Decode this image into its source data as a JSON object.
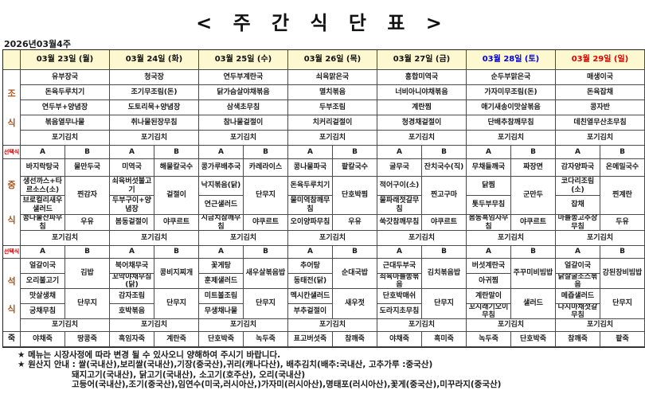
{
  "title": "< 주 간 식 단 표 >",
  "week_label": "2026년03월4주",
  "select_label": "선택식",
  "option_a": "A",
  "option_b": "B",
  "kimchi": "포기김치",
  "row_headers": {
    "breakfast": [
      "조",
      "식"
    ],
    "lunch": [
      "중",
      "식"
    ],
    "dinner": [
      "석",
      "식"
    ],
    "porridge": "죽"
  },
  "colors": {
    "weekday": "#111111",
    "saturday": "#0000d8",
    "sunday": "#d80000",
    "header_bg": "#fdf8cf",
    "meal_label": "#a8551e",
    "select_label": "#d00000"
  },
  "days": [
    {
      "date": "03월 23일 (월)",
      "color": "#111111",
      "breakfast": [
        "유부장국",
        "돈육두루치기",
        "연두부+양념장",
        "볶음열무나물",
        "포기김치"
      ],
      "lunch_a": [
        "바지락탕국",
        "생선까스+타르소스(소)",
        "브로컬리새우샐러드",
        "콩나물잔파무침"
      ],
      "lunch_b": [
        "물만두국",
        "찐감자",
        "우유"
      ],
      "dinner_a": [
        "얼갈이국",
        "오리불고기",
        "맛살생채",
        "궁채무침"
      ],
      "dinner_b": [
        "김밥",
        "단무지"
      ],
      "porridge": [
        "야채죽",
        "땅콩죽"
      ]
    },
    {
      "date": "03월 24일 (화)",
      "color": "#111111",
      "breakfast": [
        "청국장",
        "조기무조림(돈)",
        "도토리묵+양념장",
        "취나물된장무침",
        "포기김치"
      ],
      "lunch_a": [
        "미역국",
        "쇠육버섯불고기",
        "두부구이+양념장",
        "봄동겉절이"
      ],
      "lunch_b": [
        "해물칼국수",
        "겉절이",
        "야쿠르트"
      ],
      "dinner_a": [
        "북어채무국",
        "꼬막야채무침(닭)",
        "감자조림",
        "호박볶음"
      ],
      "dinner_b": [
        "콩비지찌개",
        "단무지"
      ],
      "porridge": [
        "흑임자죽",
        "계란죽"
      ]
    },
    {
      "date": "03월 25일 (수)",
      "color": "#111111",
      "breakfast": [
        "연두부계란국",
        "닭가슴살야채볶음",
        "삼색초무침",
        "참나물겉절이",
        "포기김치"
      ],
      "lunch_a": [
        "콩가루배추국",
        "낙지볶음(닭)",
        "연근샐러드",
        "시금치참깨무침"
      ],
      "lunch_b": [
        "카레라이스",
        "단무지",
        "야쿠르트"
      ],
      "dinner_a": [
        "꽃게탕",
        "훈제샐러드",
        "미트볼조림",
        "무생채나물"
      ],
      "dinner_b": [
        "새우살볶음밥",
        "단무지"
      ],
      "porridge": [
        "단호박죽",
        "녹두죽"
      ]
    },
    {
      "date": "03월 26일 (목)",
      "color": "#111111",
      "breakfast": [
        "쇠육맑은국",
        "멸치볶음",
        "두부조림",
        "치커리겉절이",
        "포기김치"
      ],
      "lunch_a": [
        "콩나물파국",
        "돈육두루치기",
        "물미역참깨무침",
        "오이양파무침"
      ],
      "lunch_b": [
        "팥칼국수",
        "단호박찜",
        "우유"
      ],
      "dinner_a": [
        "추어탕",
        "동태전(닭)",
        "멕시칸샐러드",
        "부추겉절이"
      ],
      "dinner_b": [
        "순대국밥",
        "새우젓"
      ],
      "porridge": [
        "표고버섯죽",
        "참깨죽"
      ]
    },
    {
      "date": "03월 27일 (금)",
      "color": "#111111",
      "breakfast": [
        "홍합미역국",
        "너비아니야채볶음",
        "계란찜",
        "청경채겉절이",
        "포기김치"
      ],
      "lunch_a": [
        "굴무국",
        "적어구이(소)",
        "물파래젓갈무침",
        "쑥갓참깨무침"
      ],
      "lunch_b": [
        "잔치국수(직)",
        "찐고구마",
        "야쿠르트"
      ],
      "dinner_a": [
        "근대두부국",
        "쇠육마늘쫑볶음",
        "단호박매쉬",
        "도라지초무침"
      ],
      "dinner_b": [
        "김치볶음밥",
        "단무지"
      ],
      "porridge": [
        "야채죽",
        "흑미죽"
      ]
    },
    {
      "date": "03월 28일 (토)",
      "color": "#0000d8",
      "breakfast": [
        "순두부맑은국",
        "가자미무조림(돈)",
        "애기새송이맛살볶음",
        "단배추참깨무침",
        "포기김치"
      ],
      "lunch_a": [
        "무채들깨국",
        "닭찜",
        "톳두부무침",
        "봄동흑임자무침"
      ],
      "lunch_b": [
        "짜장면",
        "군만두",
        "야쿠르트"
      ],
      "dinner_a": [
        "버섯계란국",
        "아귀찜",
        "계란말이",
        "꼬시래기오이무침"
      ],
      "dinner_b": [
        "주꾸미비빔밥",
        "샐러드"
      ],
      "porridge": [
        "녹두죽",
        "단호박죽"
      ]
    },
    {
      "date": "03월 29일 (일)",
      "color": "#d80000",
      "breakfast": [
        "매생이국",
        "돈육잡채",
        "콩자반",
        "데친열무산초무침",
        "포기김치"
      ],
      "lunch_a": [
        "감자양파국",
        "코다리조림(소)",
        "잡채",
        "마늘쫑고추장무침"
      ],
      "lunch_b": [
        "온메밀국수",
        "찐계란",
        "두유"
      ],
      "dinner_a": [
        "얼갈이국",
        "닭살굴소스볶음",
        "메즙샐러드",
        "다시마채젓갈무침"
      ],
      "dinner_b": [
        "강된장비빔밥",
        "단무지"
      ],
      "porridge": [
        "참깨죽",
        "팥죽"
      ]
    }
  ],
  "notes": [
    "★ 메뉴는 시장사정에 따라 변경 될 수 있사오니 양해하여 주시기 바랍니다.",
    "★ 원산지 안내 : 쌀(국내산),보리쌀(국내산),기장(중국산),귀리(캐나다산), 배추김치(배추:국내산, 고추가루 :중국산)",
    "돼지고기(국내산), 닭고기(국내산), 소고기(호주산), 오리(국내산)",
    "고등어(국내산),조기(중국산),임연수(미국,러시아산,)가자미(러시아산),명태포(러시아산),꽃게(중국산),미꾸라지(중국산)"
  ]
}
